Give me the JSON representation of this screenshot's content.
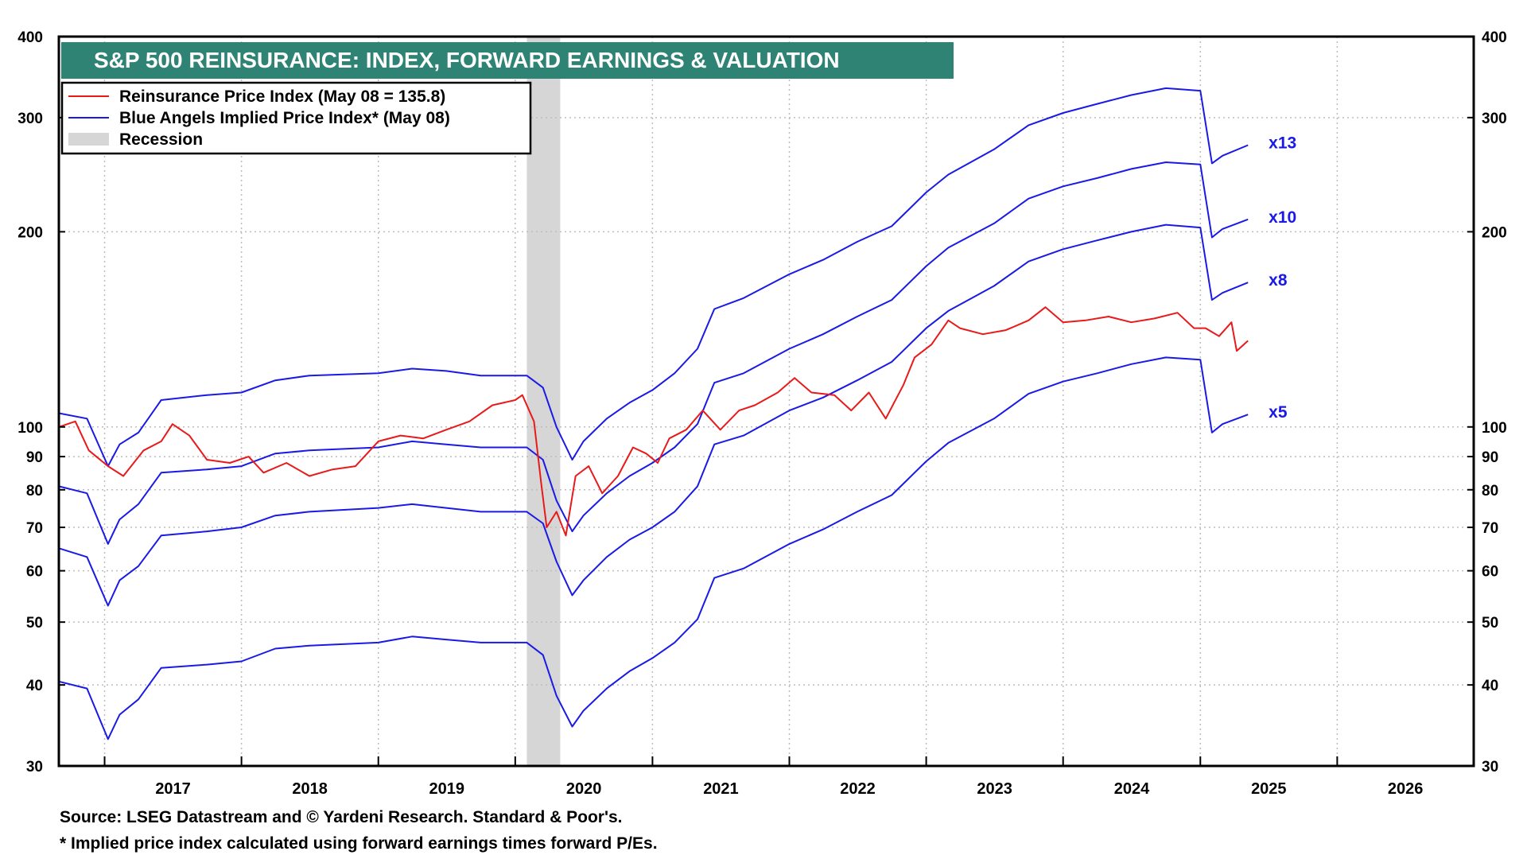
{
  "chart_data": {
    "type": "line",
    "title": "S&P 500 REINSURANCE: INDEX, FORWARD EARNINGS & VALUATION",
    "y_scale": "log",
    "ylim": [
      30,
      400
    ],
    "y_ticks": [
      30,
      40,
      50,
      60,
      70,
      80,
      90,
      100,
      200,
      300,
      400
    ],
    "y_tick_labels": [
      "30",
      "40",
      "50",
      "60",
      "70",
      "80",
      "90",
      "100",
      "200",
      "300",
      "400"
    ],
    "x_range": [
      "2016-09-01",
      "2026-12-31"
    ],
    "x_ticks": [
      "2017",
      "2018",
      "2019",
      "2020",
      "2021",
      "2022",
      "2023",
      "2024",
      "2025",
      "2026"
    ],
    "grid": true,
    "legend_position": "top-left",
    "legend": [
      {
        "label": "Reinsurance Price Index (May 08 = 135.8)",
        "color": "#e81a1a",
        "kind": "line"
      },
      {
        "label": "Blue Angels Implied Price Index* (May 08)",
        "color": "#1a1ae6",
        "kind": "line"
      },
      {
        "label": "Recession",
        "color": "#d9d9d9",
        "kind": "band"
      }
    ],
    "recession": [
      "2020-02-01",
      "2020-04-30"
    ],
    "series": [
      {
        "name": "Reinsurance Price Index (May 08 = 135.8)",
        "color": "#e81a1a",
        "points": [
          [
            "2016-09-01",
            100
          ],
          [
            "2016-10-15",
            102
          ],
          [
            "2016-11-20",
            92
          ],
          [
            "2017-01-10",
            87
          ],
          [
            "2017-02-20",
            84
          ],
          [
            "2017-04-15",
            92
          ],
          [
            "2017-06-01",
            95
          ],
          [
            "2017-07-01",
            101
          ],
          [
            "2017-08-15",
            97
          ],
          [
            "2017-10-01",
            89
          ],
          [
            "2017-12-01",
            88
          ],
          [
            "2018-01-20",
            90
          ],
          [
            "2018-03-01",
            85
          ],
          [
            "2018-05-01",
            88
          ],
          [
            "2018-07-01",
            84
          ],
          [
            "2018-09-01",
            86
          ],
          [
            "2018-11-01",
            87
          ],
          [
            "2019-01-01",
            95
          ],
          [
            "2019-03-01",
            97
          ],
          [
            "2019-05-01",
            96
          ],
          [
            "2019-07-01",
            99
          ],
          [
            "2019-09-01",
            102
          ],
          [
            "2019-11-01",
            108
          ],
          [
            "2020-01-01",
            110
          ],
          [
            "2020-01-20",
            112
          ],
          [
            "2020-02-20",
            102
          ],
          [
            "2020-03-10",
            82
          ],
          [
            "2020-03-25",
            70
          ],
          [
            "2020-04-20",
            74
          ],
          [
            "2020-05-15",
            68
          ],
          [
            "2020-06-10",
            84
          ],
          [
            "2020-07-15",
            87
          ],
          [
            "2020-08-20",
            79
          ],
          [
            "2020-10-01",
            84
          ],
          [
            "2020-11-10",
            93
          ],
          [
            "2020-12-15",
            91
          ],
          [
            "2021-01-15",
            88
          ],
          [
            "2021-02-15",
            96
          ],
          [
            "2021-04-01",
            99
          ],
          [
            "2021-05-15",
            106
          ],
          [
            "2021-07-01",
            99
          ],
          [
            "2021-08-20",
            106
          ],
          [
            "2021-10-01",
            108
          ],
          [
            "2021-12-01",
            113
          ],
          [
            "2022-01-15",
            119
          ],
          [
            "2022-03-01",
            113
          ],
          [
            "2022-05-01",
            112
          ],
          [
            "2022-06-15",
            106
          ],
          [
            "2022-08-01",
            113
          ],
          [
            "2022-09-15",
            103
          ],
          [
            "2022-11-01",
            116
          ],
          [
            "2022-12-01",
            128
          ],
          [
            "2023-01-15",
            134
          ],
          [
            "2023-03-01",
            146
          ],
          [
            "2023-04-01",
            142
          ],
          [
            "2023-06-01",
            139
          ],
          [
            "2023-08-01",
            141
          ],
          [
            "2023-10-01",
            146
          ],
          [
            "2023-11-15",
            153
          ],
          [
            "2024-01-01",
            145
          ],
          [
            "2024-03-01",
            146
          ],
          [
            "2024-05-01",
            148
          ],
          [
            "2024-07-01",
            145
          ],
          [
            "2024-09-01",
            147
          ],
          [
            "2024-11-01",
            150
          ],
          [
            "2024-12-15",
            142
          ],
          [
            "2025-01-15",
            142
          ],
          [
            "2025-02-20",
            138
          ],
          [
            "2025-03-25",
            145
          ],
          [
            "2025-04-08",
            131
          ],
          [
            "2025-05-08",
            135.8
          ]
        ]
      },
      {
        "name": "x13",
        "color": "#1a1ae6",
        "label": "x13",
        "points": [
          [
            "2016-09-01",
            105
          ],
          [
            "2016-11-15",
            103
          ],
          [
            "2017-01-10",
            87
          ],
          [
            "2017-02-10",
            94
          ],
          [
            "2017-04-01",
            98
          ],
          [
            "2017-06-01",
            110
          ],
          [
            "2017-10-01",
            112
          ],
          [
            "2018-01-01",
            113
          ],
          [
            "2018-04-01",
            118
          ],
          [
            "2018-07-01",
            120
          ],
          [
            "2019-01-01",
            121
          ],
          [
            "2019-04-01",
            123
          ],
          [
            "2019-07-01",
            122
          ],
          [
            "2019-10-01",
            120
          ],
          [
            "2020-02-01",
            120
          ],
          [
            "2020-03-15",
            115
          ],
          [
            "2020-04-20",
            100
          ],
          [
            "2020-06-01",
            89
          ],
          [
            "2020-07-01",
            95
          ],
          [
            "2020-09-01",
            103
          ],
          [
            "2020-11-01",
            109
          ],
          [
            "2021-01-01",
            114
          ],
          [
            "2021-03-01",
            121
          ],
          [
            "2021-05-01",
            132
          ],
          [
            "2021-06-15",
            152
          ],
          [
            "2021-09-01",
            158
          ],
          [
            "2022-01-01",
            172
          ],
          [
            "2022-04-01",
            181
          ],
          [
            "2022-07-01",
            193
          ],
          [
            "2022-10-01",
            204
          ],
          [
            "2023-01-01",
            230
          ],
          [
            "2023-03-01",
            245
          ],
          [
            "2023-07-01",
            268
          ],
          [
            "2023-10-01",
            292
          ],
          [
            "2024-01-01",
            305
          ],
          [
            "2024-04-01",
            315
          ],
          [
            "2024-07-01",
            325
          ],
          [
            "2024-10-01",
            333
          ],
          [
            "2025-01-01",
            330
          ],
          [
            "2025-02-01",
            255
          ],
          [
            "2025-03-01",
            262
          ],
          [
            "2025-05-08",
            272
          ]
        ]
      },
      {
        "name": "x10",
        "color": "#1a1ae6",
        "label": "x10",
        "points": [
          [
            "2016-09-01",
            81
          ],
          [
            "2016-11-15",
            79
          ],
          [
            "2017-01-10",
            66
          ],
          [
            "2017-02-10",
            72
          ],
          [
            "2017-04-01",
            76
          ],
          [
            "2017-06-01",
            85
          ],
          [
            "2017-10-01",
            86
          ],
          [
            "2018-01-01",
            87
          ],
          [
            "2018-04-01",
            91
          ],
          [
            "2018-07-01",
            92
          ],
          [
            "2019-01-01",
            93
          ],
          [
            "2019-04-01",
            95
          ],
          [
            "2019-07-01",
            94
          ],
          [
            "2019-10-01",
            93
          ],
          [
            "2020-02-01",
            93
          ],
          [
            "2020-03-15",
            89
          ],
          [
            "2020-04-20",
            77
          ],
          [
            "2020-06-01",
            69
          ],
          [
            "2020-07-01",
            73
          ],
          [
            "2020-09-01",
            79
          ],
          [
            "2020-11-01",
            84
          ],
          [
            "2021-01-01",
            88
          ],
          [
            "2021-03-01",
            93
          ],
          [
            "2021-05-01",
            101
          ],
          [
            "2021-06-15",
            117
          ],
          [
            "2021-09-01",
            121
          ],
          [
            "2022-01-01",
            132
          ],
          [
            "2022-04-01",
            139
          ],
          [
            "2022-07-01",
            148
          ],
          [
            "2022-10-01",
            157
          ],
          [
            "2023-01-01",
            177
          ],
          [
            "2023-03-01",
            189
          ],
          [
            "2023-07-01",
            206
          ],
          [
            "2023-10-01",
            225
          ],
          [
            "2024-01-01",
            235
          ],
          [
            "2024-04-01",
            242
          ],
          [
            "2024-07-01",
            250
          ],
          [
            "2024-10-01",
            256
          ],
          [
            "2025-01-01",
            254
          ],
          [
            "2025-02-01",
            196
          ],
          [
            "2025-03-01",
            202
          ],
          [
            "2025-05-08",
            209
          ]
        ]
      },
      {
        "name": "x8",
        "color": "#1a1ae6",
        "label": "x8",
        "points": [
          [
            "2016-09-01",
            65
          ],
          [
            "2016-11-15",
            63
          ],
          [
            "2017-01-10",
            53
          ],
          [
            "2017-02-10",
            58
          ],
          [
            "2017-04-01",
            61
          ],
          [
            "2017-06-01",
            68
          ],
          [
            "2017-10-01",
            69
          ],
          [
            "2018-01-01",
            70
          ],
          [
            "2018-04-01",
            73
          ],
          [
            "2018-07-01",
            74
          ],
          [
            "2019-01-01",
            75
          ],
          [
            "2019-04-01",
            76
          ],
          [
            "2019-07-01",
            75
          ],
          [
            "2019-10-01",
            74
          ],
          [
            "2020-02-01",
            74
          ],
          [
            "2020-03-15",
            71
          ],
          [
            "2020-04-20",
            62
          ],
          [
            "2020-06-01",
            55
          ],
          [
            "2020-07-01",
            58
          ],
          [
            "2020-09-01",
            63
          ],
          [
            "2020-11-01",
            67
          ],
          [
            "2021-01-01",
            70
          ],
          [
            "2021-03-01",
            74
          ],
          [
            "2021-05-01",
            81
          ],
          [
            "2021-06-15",
            94
          ],
          [
            "2021-09-01",
            97
          ],
          [
            "2022-01-01",
            106
          ],
          [
            "2022-04-01",
            111
          ],
          [
            "2022-07-01",
            118
          ],
          [
            "2022-10-01",
            126
          ],
          [
            "2023-01-01",
            142
          ],
          [
            "2023-03-01",
            151
          ],
          [
            "2023-07-01",
            165
          ],
          [
            "2023-10-01",
            180
          ],
          [
            "2024-01-01",
            188
          ],
          [
            "2024-04-01",
            194
          ],
          [
            "2024-07-01",
            200
          ],
          [
            "2024-10-01",
            205
          ],
          [
            "2025-01-01",
            203
          ],
          [
            "2025-02-01",
            157
          ],
          [
            "2025-03-01",
            161
          ],
          [
            "2025-05-08",
            167
          ]
        ]
      },
      {
        "name": "x5",
        "color": "#1a1ae6",
        "label": "x5",
        "points": [
          [
            "2016-09-01",
            40.5
          ],
          [
            "2016-11-15",
            39.5
          ],
          [
            "2017-01-10",
            33
          ],
          [
            "2017-02-10",
            36
          ],
          [
            "2017-04-01",
            38
          ],
          [
            "2017-06-01",
            42.5
          ],
          [
            "2017-10-01",
            43
          ],
          [
            "2018-01-01",
            43.5
          ],
          [
            "2018-04-01",
            45.5
          ],
          [
            "2018-07-01",
            46
          ],
          [
            "2019-01-01",
            46.5
          ],
          [
            "2019-04-01",
            47.5
          ],
          [
            "2019-07-01",
            47
          ],
          [
            "2019-10-01",
            46.5
          ],
          [
            "2020-02-01",
            46.5
          ],
          [
            "2020-03-15",
            44.5
          ],
          [
            "2020-04-20",
            38.5
          ],
          [
            "2020-06-01",
            34.5
          ],
          [
            "2020-07-01",
            36.5
          ],
          [
            "2020-09-01",
            39.5
          ],
          [
            "2020-11-01",
            42
          ],
          [
            "2021-01-01",
            44
          ],
          [
            "2021-03-01",
            46.5
          ],
          [
            "2021-05-01",
            50.5
          ],
          [
            "2021-06-15",
            58.5
          ],
          [
            "2021-09-01",
            60.5
          ],
          [
            "2022-01-01",
            66
          ],
          [
            "2022-04-01",
            69.5
          ],
          [
            "2022-07-01",
            74
          ],
          [
            "2022-10-01",
            78.5
          ],
          [
            "2023-01-01",
            88.5
          ],
          [
            "2023-03-01",
            94.5
          ],
          [
            "2023-07-01",
            103
          ],
          [
            "2023-10-01",
            112.5
          ],
          [
            "2024-01-01",
            117.5
          ],
          [
            "2024-04-01",
            121
          ],
          [
            "2024-07-01",
            125
          ],
          [
            "2024-10-01",
            128
          ],
          [
            "2025-01-01",
            127
          ],
          [
            "2025-02-01",
            98
          ],
          [
            "2025-03-01",
            101
          ],
          [
            "2025-05-08",
            104.5
          ]
        ]
      }
    ]
  },
  "footnotes": {
    "source": "Source: LSEG Datastream and © Yardeni Research. Standard & Poor's.",
    "implied": "* Implied price index calculated using forward earnings times forward P/Es."
  }
}
